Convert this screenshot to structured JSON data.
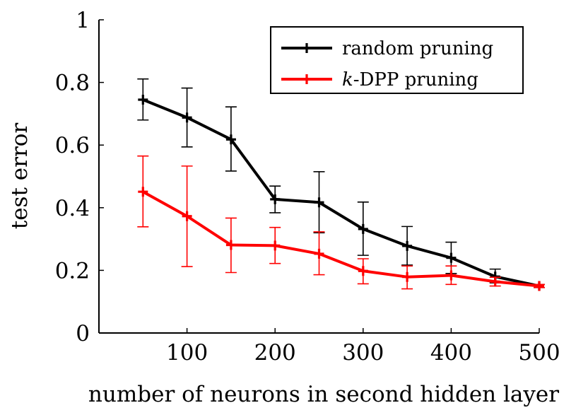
{
  "chart_data": {
    "type": "line",
    "title": "",
    "xlabel": "number of neurons in second hidden layer",
    "ylabel": "test error",
    "xlim": [
      0,
      500
    ],
    "ylim": [
      0,
      1
    ],
    "x_ticks": [
      100,
      200,
      300,
      400,
      500
    ],
    "y_ticks": [
      0,
      0.2,
      0.4,
      0.6,
      0.8,
      1
    ],
    "y_tick_labels": [
      "0",
      "0.2",
      "0.4",
      "0.6",
      "0.8",
      "1"
    ],
    "legend_position": "top-right",
    "x": [
      50,
      100,
      150,
      200,
      250,
      300,
      350,
      400,
      450,
      500
    ],
    "series": [
      {
        "name": "random pruning",
        "legend_prefix": "",
        "legend_suffix": "random pruning",
        "color": "#000000",
        "values": [
          0.745,
          0.688,
          0.618,
          0.427,
          0.417,
          0.332,
          0.278,
          0.24,
          0.18,
          0.15
        ],
        "err_low": [
          0.68,
          0.594,
          0.517,
          0.384,
          0.32,
          0.248,
          0.217,
          0.19,
          0.16,
          0.145
        ],
        "err_high": [
          0.811,
          0.782,
          0.722,
          0.469,
          0.515,
          0.418,
          0.34,
          0.29,
          0.204,
          0.155
        ]
      },
      {
        "name": "k-DPP pruning",
        "legend_prefix": "k",
        "legend_suffix": "-DPP pruning",
        "color": "#ff0000",
        "values": [
          0.451,
          0.373,
          0.281,
          0.279,
          0.253,
          0.198,
          0.179,
          0.184,
          0.164,
          0.15
        ],
        "err_low": [
          0.339,
          0.212,
          0.193,
          0.222,
          0.186,
          0.157,
          0.141,
          0.155,
          0.15,
          0.145
        ],
        "err_high": [
          0.565,
          0.533,
          0.367,
          0.337,
          0.323,
          0.237,
          0.214,
          0.214,
          0.178,
          0.155
        ]
      }
    ]
  }
}
